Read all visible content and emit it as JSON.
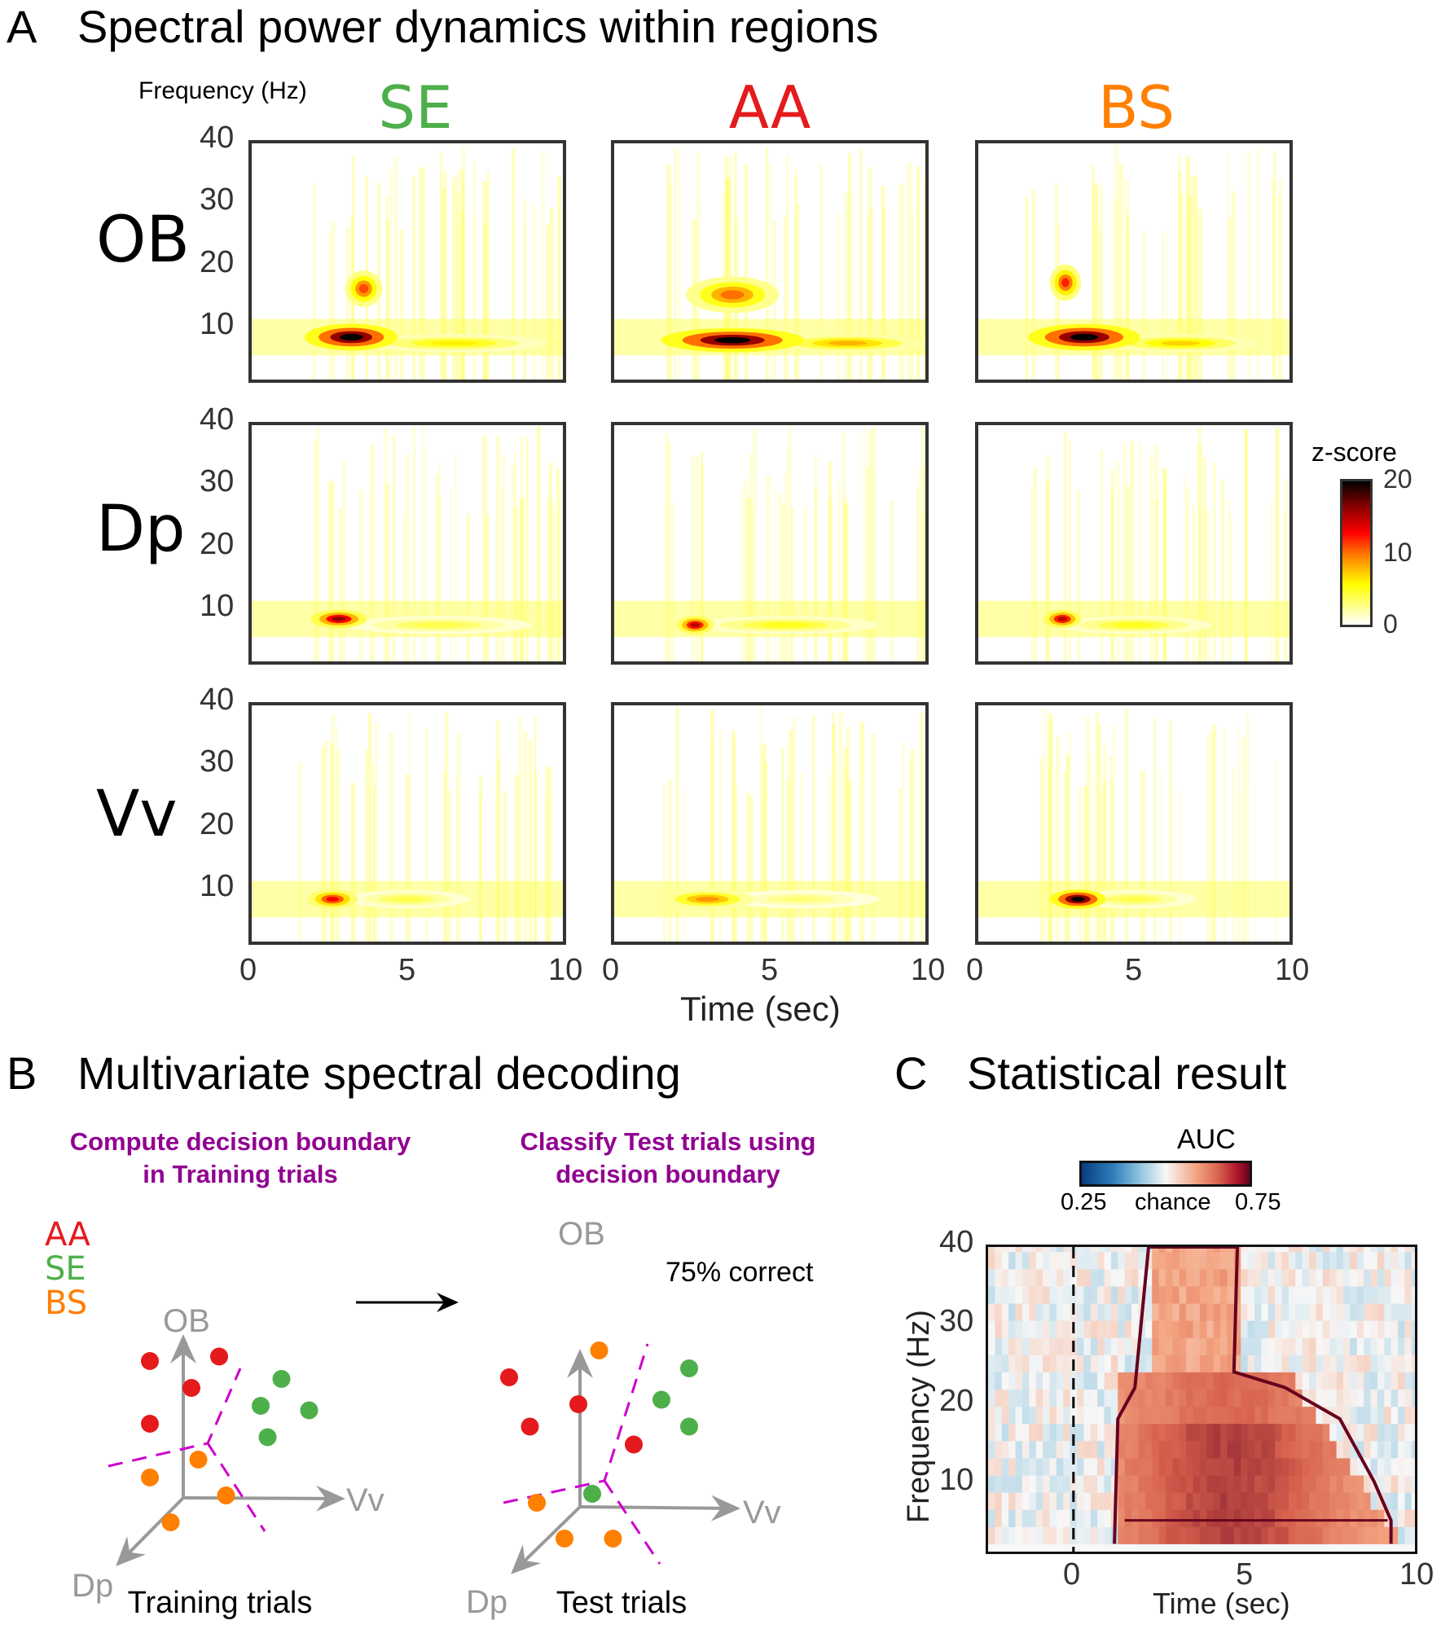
{
  "panel_a": {
    "letter": "A",
    "title": "Spectral power dynamics within regions",
    "y_axis_title": "Frequency (Hz)",
    "x_axis_title": "Time (sec)",
    "columns": [
      {
        "label": "SE",
        "color": "#4daf4a"
      },
      {
        "label": "AA",
        "color": "#e41a1c"
      },
      {
        "label": "BS",
        "color": "#ff7f00"
      }
    ],
    "rows": [
      "OB",
      "Dp",
      "Vv"
    ],
    "y_ticks": [
      "40",
      "30",
      "20",
      "10"
    ],
    "x_ticks": [
      "0",
      "5",
      "10"
    ],
    "colorbar": {
      "title": "z-score",
      "ticks": [
        "20",
        "10",
        "0"
      ],
      "min": 0,
      "max": 20,
      "colormap": "hot (white-yellow-red-black)"
    }
  },
  "panel_b": {
    "letter": "B",
    "title": "Multivariate spectral decoding",
    "step1_title_line1": "Compute decision boundary",
    "step1_title_line2": "in Training trials",
    "step2_title_line1": "Classify Test trials using",
    "step2_title_line2": "decision boundary",
    "legend": [
      {
        "label": "AA",
        "color": "#e41a1c"
      },
      {
        "label": "SE",
        "color": "#4daf4a"
      },
      {
        "label": "BS",
        "color": "#ff7f00"
      }
    ],
    "axes": {
      "up": "OB",
      "right": "Vv",
      "down_left": "Dp"
    },
    "accuracy_text": "75% correct",
    "training_caption": "Training trials",
    "test_caption": "Test trials",
    "boundary_color": "#cc00cc"
  },
  "panel_c": {
    "letter": "C",
    "title": "Statistical result",
    "colorbar": {
      "title": "AUC",
      "min_label": "0.25",
      "mid_label": "chance",
      "max_label": "0.75",
      "min": 0.25,
      "max": 0.75
    },
    "y_label": "Frequency (Hz)",
    "x_label": "Time (sec)",
    "y_ticks": [
      "40",
      "30",
      "20",
      "10"
    ],
    "x_ticks": [
      "0",
      "5",
      "10"
    ]
  },
  "chart_data": [
    {
      "type": "heatmap",
      "title": "Spectral power dynamics within regions",
      "xlabel": "Time (sec)",
      "ylabel": "Frequency (Hz)",
      "xlim": [
        0,
        10
      ],
      "ylim": [
        1,
        40
      ],
      "zlabel": "z-score",
      "zlim": [
        0,
        20
      ],
      "grid_rows": [
        "OB",
        "Dp",
        "Vv"
      ],
      "grid_cols": [
        "SE",
        "AA",
        "BS"
      ],
      "blobs": [
        {
          "row": "OB",
          "col": "SE",
          "peaks": [
            {
              "t": 3.2,
              "f": 8,
              "z": 20,
              "tw": 1.5,
              "fw": 2.2
            },
            {
              "t": 3.6,
              "f": 16,
              "z": 11,
              "tw": 0.6,
              "fw": 3
            },
            {
              "t": 6.5,
              "f": 7,
              "z": 6,
              "tw": 3,
              "fw": 1.5
            }
          ]
        },
        {
          "row": "OB",
          "col": "AA",
          "peaks": [
            {
              "t": 3.8,
              "f": 7.5,
              "z": 20,
              "tw": 2.3,
              "fw": 2
            },
            {
              "t": 3.8,
              "f": 15,
              "z": 10,
              "tw": 1.5,
              "fw": 3
            },
            {
              "t": 7.5,
              "f": 7,
              "z": 8,
              "tw": 2.5,
              "fw": 1.5
            }
          ]
        },
        {
          "row": "OB",
          "col": "BS",
          "peaks": [
            {
              "t": 3.4,
              "f": 8,
              "z": 20,
              "tw": 1.8,
              "fw": 2.2
            },
            {
              "t": 2.8,
              "f": 17,
              "z": 12,
              "tw": 0.5,
              "fw": 3
            },
            {
              "t": 6.5,
              "f": 7,
              "z": 7,
              "tw": 2.5,
              "fw": 1.5
            }
          ]
        },
        {
          "row": "Dp",
          "col": "SE",
          "peaks": [
            {
              "t": 2.8,
              "f": 8,
              "z": 16,
              "tw": 0.9,
              "fw": 1.5
            },
            {
              "t": 6,
              "f": 7,
              "z": 4,
              "tw": 3,
              "fw": 1.5
            }
          ]
        },
        {
          "row": "Dp",
          "col": "AA",
          "peaks": [
            {
              "t": 2.6,
              "f": 7,
              "z": 15,
              "tw": 0.6,
              "fw": 1.5
            },
            {
              "t": 5.5,
              "f": 7,
              "z": 5,
              "tw": 3,
              "fw": 1.5
            }
          ]
        },
        {
          "row": "Dp",
          "col": "BS",
          "peaks": [
            {
              "t": 2.7,
              "f": 8,
              "z": 15,
              "tw": 0.6,
              "fw": 1.5
            },
            {
              "t": 5,
              "f": 7,
              "z": 5,
              "tw": 2.5,
              "fw": 1.5
            }
          ]
        },
        {
          "row": "Vv",
          "col": "SE",
          "peaks": [
            {
              "t": 2.6,
              "f": 8,
              "z": 13,
              "tw": 0.8,
              "fw": 1.6
            },
            {
              "t": 5,
              "f": 8,
              "z": 4,
              "tw": 2,
              "fw": 1.5
            }
          ]
        },
        {
          "row": "Vv",
          "col": "AA",
          "peaks": [
            {
              "t": 3,
              "f": 8,
              "z": 9,
              "tw": 1.5,
              "fw": 1.6
            },
            {
              "t": 6,
              "f": 8,
              "z": 3,
              "tw": 2.5,
              "fw": 1.5
            }
          ]
        },
        {
          "row": "Vv",
          "col": "BS",
          "peaks": [
            {
              "t": 3.2,
              "f": 8,
              "z": 20,
              "tw": 0.9,
              "fw": 1.6
            },
            {
              "t": 5,
              "f": 8,
              "z": 4,
              "tw": 2,
              "fw": 1.5
            }
          ]
        }
      ]
    },
    {
      "type": "heatmap",
      "title": "Statistical result",
      "xlabel": "Time (sec)",
      "ylabel": "Frequency (Hz)",
      "xlim": [
        -2.5,
        10
      ],
      "ylim": [
        1,
        40
      ],
      "zlabel": "AUC",
      "zlim": [
        0.25,
        0.75
      ],
      "stimulus_onset": 0,
      "significant_region": {
        "t_start": 1.2,
        "t_end": 9.3,
        "f_low": 2,
        "f_high": 22,
        "high_freq_burst": {
          "t_start": 2.2,
          "t_end": 4.8,
          "f_high": 40
        }
      },
      "peak_auc": 0.68
    },
    {
      "type": "scatter",
      "title": "Training trials",
      "points": [
        {
          "class": "AA",
          "x": -0.6,
          "y": 0.9
        },
        {
          "class": "AA",
          "x": 0.4,
          "y": 0.95
        },
        {
          "class": "AA",
          "x": 0,
          "y": 0.6
        },
        {
          "class": "AA",
          "x": -0.6,
          "y": 0.2
        },
        {
          "class": "SE",
          "x": 1.3,
          "y": 0.7
        },
        {
          "class": "SE",
          "x": 1.0,
          "y": 0.4
        },
        {
          "class": "SE",
          "x": 1.7,
          "y": 0.35
        },
        {
          "class": "SE",
          "x": 1.1,
          "y": 0.05
        },
        {
          "class": "BS",
          "x": 0.1,
          "y": -0.2
        },
        {
          "class": "BS",
          "x": -0.6,
          "y": -0.4
        },
        {
          "class": "BS",
          "x": 0.5,
          "y": -0.6
        },
        {
          "class": "BS",
          "x": -0.3,
          "y": -0.9
        }
      ]
    },
    {
      "type": "scatter",
      "title": "Test trials",
      "accuracy_percent": 75,
      "points": [
        {
          "class": "BS",
          "x": 0.3,
          "y": 1.2
        },
        {
          "class": "AA",
          "x": -1.0,
          "y": 0.9
        },
        {
          "class": "AA",
          "x": 0,
          "y": 0.6
        },
        {
          "class": "AA",
          "x": -0.7,
          "y": 0.35
        },
        {
          "class": "SE",
          "x": 1.6,
          "y": 1.0
        },
        {
          "class": "SE",
          "x": 1.2,
          "y": 0.65
        },
        {
          "class": "SE",
          "x": 1.6,
          "y": 0.35
        },
        {
          "class": "AA",
          "x": 0.8,
          "y": 0.15
        },
        {
          "class": "SE",
          "x": 0.2,
          "y": -0.4
        },
        {
          "class": "BS",
          "x": -0.6,
          "y": -0.5
        },
        {
          "class": "BS",
          "x": -0.2,
          "y": -0.9
        },
        {
          "class": "BS",
          "x": 0.5,
          "y": -0.9
        }
      ]
    }
  ]
}
